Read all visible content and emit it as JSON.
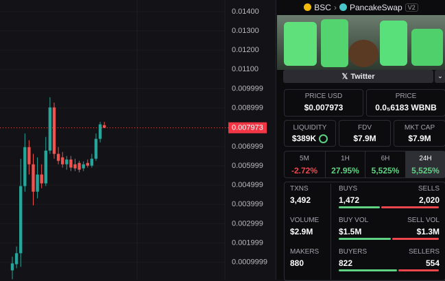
{
  "price_chart": {
    "type": "candlestick",
    "ylim": [
      0.0001,
      0.0146
    ],
    "yticks": [
      {
        "value": 0.014,
        "label": "0.01400"
      },
      {
        "value": 0.013,
        "label": "0.01300"
      },
      {
        "value": 0.012,
        "label": "0.01200"
      },
      {
        "value": 0.011,
        "label": "0.01100"
      },
      0.009999,
      0.008999,
      0.006999,
      0.005999,
      0.004999,
      0.003999,
      0.002999,
      0.001999,
      0.0009999
    ],
    "open": [
      0.00058,
      0.0009,
      0.00147,
      0.00495,
      0.00697,
      0.00608,
      0.00466,
      0.00555,
      0.00509,
      0.00679,
      0.00903,
      0.00662,
      0.00644,
      0.00608,
      0.00633,
      0.00608,
      0.00615,
      0.00587,
      0.00615,
      0.00601,
      0.00637,
      0.0074,
      0.00811
    ],
    "high": [
      0.00129,
      0.00182,
      0.00637,
      0.00768,
      0.00733,
      0.00662,
      0.00644,
      0.00608,
      0.0075,
      0.00956,
      0.00928,
      0.00697,
      0.00672,
      0.00651,
      0.00651,
      0.00637,
      0.00626,
      0.00623,
      0.00633,
      0.00662,
      0.00768,
      0.00828,
      0.00828
    ],
    "low": [
      0.00012,
      0.00069,
      0.00076,
      0.00466,
      0.00555,
      0.00395,
      0.00431,
      0.00484,
      0.00495,
      0.00662,
      0.00637,
      0.00608,
      0.00591,
      0.0058,
      0.00573,
      0.00573,
      0.00566,
      0.00573,
      0.00591,
      0.00591,
      0.00626,
      0.00722,
      0.00795
    ],
    "close": [
      0.00094,
      0.00147,
      0.00495,
      0.00697,
      0.00608,
      0.00466,
      0.00555,
      0.00509,
      0.00679,
      0.00903,
      0.00662,
      0.00626,
      0.00608,
      0.00633,
      0.00591,
      0.00587,
      0.0058,
      0.00608,
      0.00601,
      0.00637,
      0.0074,
      0.00815,
      0.007973
    ],
    "current_price": {
      "value": 0.007973,
      "label": "0.007973"
    }
  },
  "header": {
    "chain": "BSC",
    "dex": "PancakeSwap",
    "version": "V2"
  },
  "social": {
    "button": "Twitter"
  },
  "price": {
    "usd_label": "PRICE USD",
    "usd": "$0.007973",
    "native_label": "PRICE",
    "native": "0.0₅6183 WBNB"
  },
  "metrics": [
    {
      "label": "LIQUIDITY",
      "value": "$389K"
    },
    {
      "label": "FDV",
      "value": "$7.9M"
    },
    {
      "label": "MKT CAP",
      "value": "$7.9M"
    }
  ],
  "timeframes": [
    {
      "label": "5M",
      "change": "-2.72%"
    },
    {
      "label": "1H",
      "change": "27.95%"
    },
    {
      "label": "6H",
      "change": "5,525%"
    },
    {
      "label": "24H",
      "change": "5,525%"
    }
  ],
  "stats": [
    {
      "label": "TXNS",
      "value": "3,492",
      "left_label": "BUYS",
      "left": "1,472",
      "right_label": "SELLS",
      "right": "2,020"
    },
    {
      "label": "VOLUME",
      "value": "$2.9M",
      "left_label": "BUY VOL",
      "left": "$1.5M",
      "right_label": "SELL VOL",
      "right": "$1.3M"
    },
    {
      "label": "MAKERS",
      "value": "880",
      "left_label": "BUYERS",
      "left": "822",
      "right_label": "SELLERS",
      "right": "554"
    }
  ]
}
